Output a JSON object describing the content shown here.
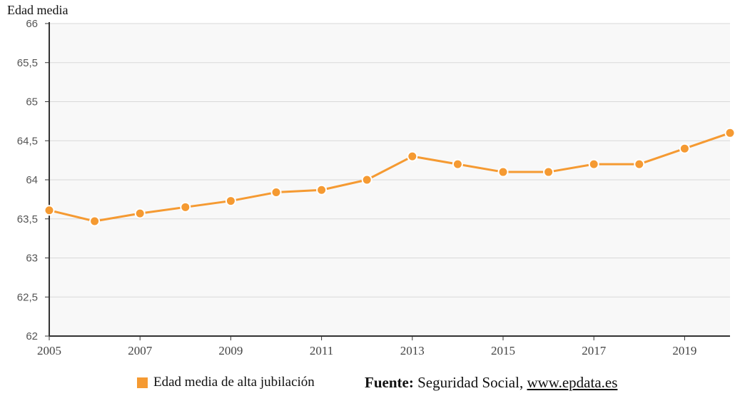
{
  "chart_data": {
    "type": "line",
    "ylabel": "Edad media",
    "x": [
      2005,
      2006,
      2007,
      2008,
      2009,
      2010,
      2011,
      2012,
      2013,
      2014,
      2015,
      2016,
      2017,
      2018,
      2019,
      2020
    ],
    "series": [
      {
        "name": "Edad media de alta jubilación",
        "values": [
          63.61,
          63.47,
          63.57,
          63.65,
          63.73,
          63.84,
          63.87,
          64.0,
          64.3,
          64.2,
          64.1,
          64.1,
          64.2,
          64.2,
          64.4,
          64.6
        ]
      }
    ],
    "ylim": [
      62,
      66
    ],
    "yticks": [
      "62",
      "62,5",
      "63",
      "63,5",
      "64",
      "64,5",
      "65",
      "65,5",
      "66"
    ],
    "xticks": [
      "2005",
      "2007",
      "2009",
      "2011",
      "2013",
      "2015",
      "2017",
      "2019"
    ],
    "grid": true,
    "legend_position": "bottom"
  },
  "colors": {
    "series": "#f59a32",
    "plot_bg": "#f8f8f8",
    "grid": "#d9d9d9",
    "axis": "#333333"
  },
  "source": {
    "label": "Fuente:",
    "text": "Seguridad Social,",
    "link": "www.epdata.es"
  }
}
